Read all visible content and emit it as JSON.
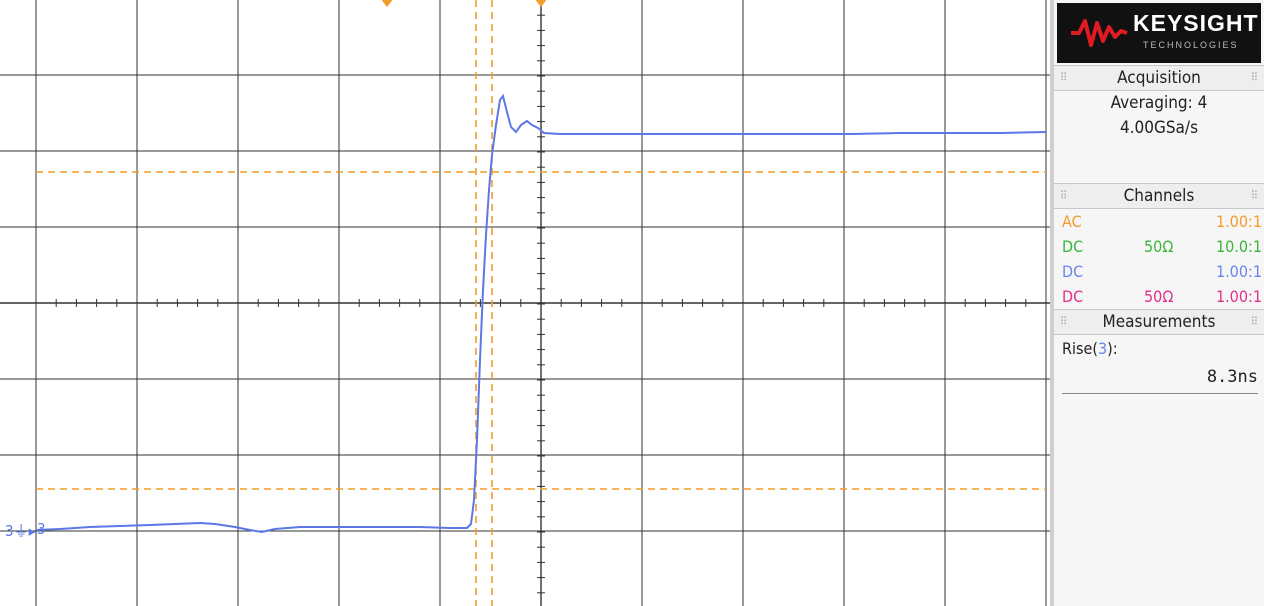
{
  "brand": {
    "name": "KEYSIGHT",
    "subtitle": "TECHNOLOGIES"
  },
  "acquisition": {
    "title": "Acquisition",
    "mode": "Averaging: 4",
    "sample_rate": "4.00GSa/s"
  },
  "channels": {
    "title": "Channels",
    "rows": [
      {
        "coupling": "AC",
        "impedance": "",
        "probe": "1.00:1",
        "color": "#f39c2a"
      },
      {
        "coupling": "DC",
        "impedance": "50Ω",
        "probe": "10.0:1",
        "color": "#3bb43b"
      },
      {
        "coupling": "DC",
        "impedance": "",
        "probe": "1.00:1",
        "color": "#6a86ec"
      },
      {
        "coupling": "DC",
        "impedance": "50Ω",
        "probe": "1.00:1",
        "color": "#e0308c"
      }
    ]
  },
  "measurements": {
    "title": "Measurements",
    "label_prefix": "Rise(",
    "label_channel": "3",
    "label_suffix": "):",
    "value": "8.3ns"
  },
  "display": {
    "channel_marker": "3",
    "ground_marker": "3",
    "trace_color": "#5b78e6",
    "cursor_color": "#f39c2a",
    "grid_color": "#333333"
  }
}
